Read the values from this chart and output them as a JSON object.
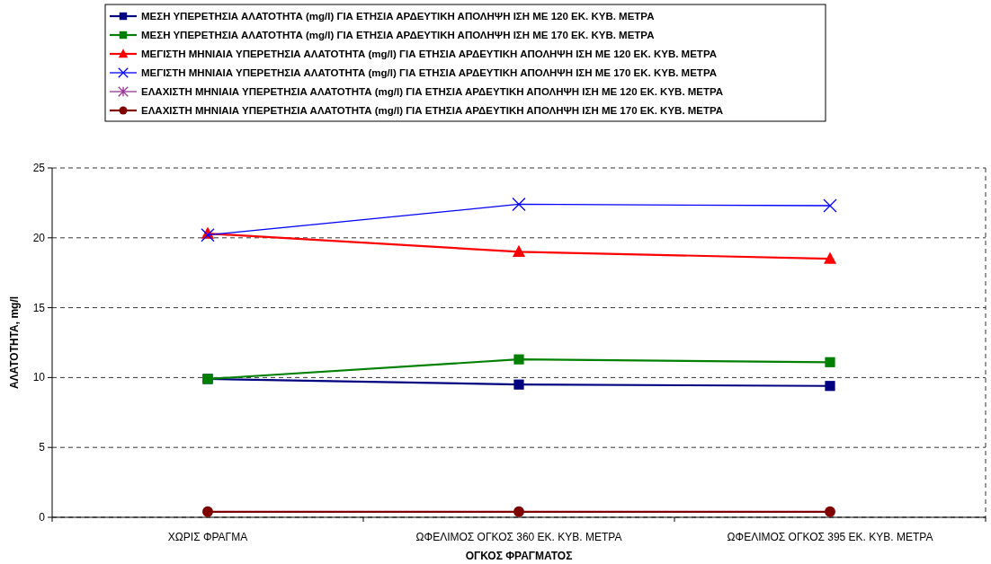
{
  "chart_data": {
    "type": "line",
    "xlabel": "ΟΓΚΟΣ ΦΡΑΓΜΑΤΟΣ",
    "ylabel": "ΑΛΑΤΟΤΗΤΑ, mg/l",
    "categories": [
      "ΧΩΡΙΣ ΦΡΑΓΜΑ",
      "ΩΦΕΛΙΜΟΣ ΟΓΚΟΣ 360 ΕΚ. ΚΥΒ. ΜΕΤΡΑ",
      "ΩΦΕΛΙΜΟΣ ΟΓΚΟΣ 395 ΕΚ. ΚΥΒ. ΜΕΤΡΑ"
    ],
    "ylim": [
      0,
      25
    ],
    "yticks": [
      0,
      5,
      10,
      15,
      20,
      25
    ],
    "grid": "y",
    "legend": "top",
    "series": [
      {
        "name": "ΜΕΣΗ ΥΠΕΡΕΤΗΣΙΑ ΑΛΑΤΟΤΗΤΑ (mg/l) ΓΙΑ ΕΤΗΣΙΑ ΑΡΔΕΥΤΙΚΗ ΑΠΟΛΗΨΗ ΙΣΗ ΜΕ 120 ΕΚ. ΚΥΒ. ΜΕΤΡΑ",
        "color": "#000080",
        "marker": "square",
        "values": [
          9.9,
          9.5,
          9.4
        ]
      },
      {
        "name": "ΜΕΣΗ ΥΠΕΡΕΤΗΣΙΑ ΑΛΑΤΟΤΗΤΑ (mg/l) ΓΙΑ ΕΤΗΣΙΑ ΑΡΔΕΥΤΙΚΗ ΑΠΟΛΗΨΗ ΙΣΗ ΜΕ 170 ΕΚ. ΚΥΒ. ΜΕΤΡΑ",
        "color": "#008000",
        "marker": "square",
        "values": [
          9.9,
          11.3,
          11.1
        ]
      },
      {
        "name": "ΜΕΓΙΣΤΗ ΜΗΝΙΑΙΑ ΥΠΕΡΕΤΗΣΙΑ ΑΛΑΤΟΤΗΤΑ (mg/l) ΓΙΑ ΕΤΗΣΙΑ ΑΡΔΕΥΤΙΚΗ ΑΠΟΛΗΨΗ ΙΣΗ ΜΕ 120 ΕΚ. ΚΥΒ. ΜΕΤΡΑ",
        "color": "#ff0000",
        "marker": "triangle",
        "values": [
          20.3,
          19.0,
          18.5
        ]
      },
      {
        "name": "ΜΕΓΙΣΤΗ ΜΗΝΙΑΙΑ ΥΠΕΡΕΤΗΣΙΑ ΑΛΑΤΟΤΗΤΑ (mg/l) ΓΙΑ ΕΤΗΣΙΑ ΑΡΔΕΥΤΙΚΗ ΑΠΟΛΗΨΗ ΙΣΗ ΜΕ 170 ΕΚ. ΚΥΒ. ΜΕΤΡΑ",
        "color": "#0000ff",
        "marker": "cross",
        "values": [
          20.2,
          22.4,
          22.3
        ]
      },
      {
        "name": "ΕΛΑΧΙΣΤΗ ΜΗΝΙΑΙΑ ΥΠΕΡΕΤΗΣΙΑ ΑΛΑΤΟΤΗΤΑ (mg/l) ΓΙΑ ΕΤΗΣΙΑ ΑΡΔΕΥΤΙΚΗ ΑΠΟΛΗΨΗ ΙΣΗ ΜΕ 120 ΕΚ. ΚΥΒ. ΜΕΤΡΑ",
        "color": "#993399",
        "marker": "star",
        "values": [
          null,
          null,
          null
        ]
      },
      {
        "name": "ΕΛΑΧΙΣΤΗ ΜΗΝΙΑΙΑ ΥΠΕΡΕΤΗΣΙΑ ΑΛΑΤΟΤΗΤΑ (mg/l) ΓΙΑ ΕΤΗΣΙΑ ΑΡΔΕΥΤΙΚΗ ΑΠΟΛΗΨΗ ΙΣΗ ΜΕ 170 ΕΚ. ΚΥΒ. ΜΕΤΡΑ",
        "color": "#800000",
        "marker": "circle",
        "values": [
          0.4,
          0.4,
          0.4
        ]
      }
    ]
  }
}
